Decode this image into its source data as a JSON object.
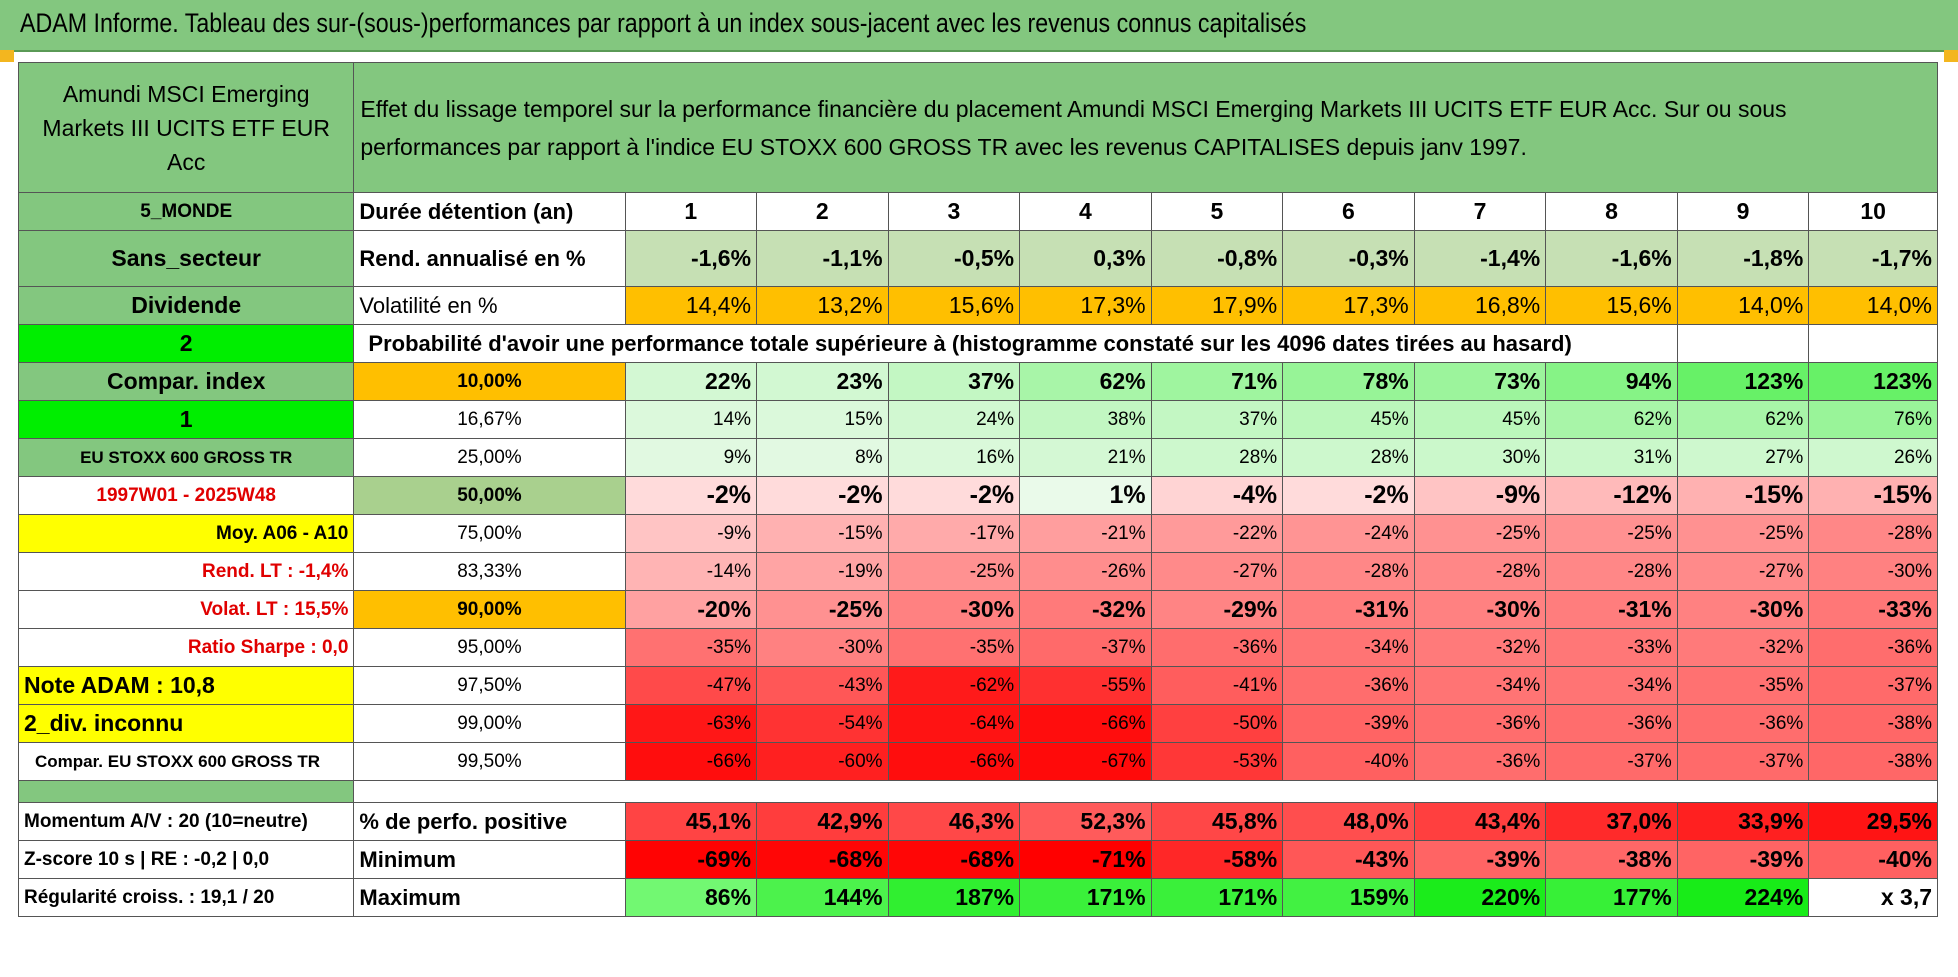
{
  "banner": {
    "title": "ADAM Informe. Tableau des sur-(sous-)performances par rapport à un index sous-jacent avec les revenus connus capitalisés"
  },
  "fund": {
    "name": "Amundi MSCI Emerging Markets III UCITS ETF EUR Acc"
  },
  "description": "Effet du lissage temporel sur la performance financière du placement Amundi MSCI Emerging Markets III UCITS ETF EUR Acc. Sur ou sous performances par rapport à l'indice EU STOXX 600 GROSS TR avec les revenus CAPITALISES depuis janv 1997.",
  "left": {
    "zone": "5_MONDE",
    "sector": "Sans_secteur",
    "dividend": "Dividende",
    "val2": "2",
    "compar_index": "Compar. index",
    "val1": "1",
    "index_name": "EU STOXX 600 GROSS TR",
    "period": "1997W01 - 2025W48",
    "moy": "Moy. A06 - A10",
    "rend_lt": "Rend. LT :   -1,4%",
    "volat_lt": "Volat. LT :   15,5%",
    "sharpe": "Ratio Sharpe :    0,0",
    "note": "Note ADAM : 10,8",
    "div_inconnu": "2_div. inconnu",
    "compar_full": "Compar. EU STOXX 600 GROSS TR",
    "momentum": "Momentum A/V : 20 (10=neutre)",
    "zscore": "Z-score 10 s | RE : -0,2 | 0,0",
    "regularite": "Régularité croiss. : 19,1 / 20"
  },
  "labels": {
    "duree": "Durée détention (an)",
    "rend": "Rend. annualisé en %",
    "vol": "Volatilité en %",
    "proba": "Probabilité d'avoir une performance totale supérieure à (histogramme constaté sur les 4096 dates tirées au hasard)",
    "pos": "% de perfo. positive",
    "min": "Minimum",
    "max": "Maximum"
  },
  "years": [
    "1",
    "2",
    "3",
    "4",
    "5",
    "6",
    "7",
    "8",
    "9",
    "10"
  ],
  "rend": [
    "-1,6%",
    "-1,1%",
    "-0,5%",
    "0,3%",
    "-0,8%",
    "-0,3%",
    "-1,4%",
    "-1,6%",
    "-1,8%",
    "-1,7%"
  ],
  "vol": [
    "14,4%",
    "13,2%",
    "15,6%",
    "17,3%",
    "17,9%",
    "17,3%",
    "16,8%",
    "15,6%",
    "14,0%",
    "14,0%"
  ],
  "pct_rows": [
    {
      "p": "10,00%",
      "v": [
        "22%",
        "23%",
        "37%",
        "62%",
        "71%",
        "78%",
        "73%",
        "94%",
        "123%",
        "123%"
      ]
    },
    {
      "p": "16,67%",
      "v": [
        "14%",
        "15%",
        "24%",
        "38%",
        "37%",
        "45%",
        "45%",
        "62%",
        "62%",
        "76%"
      ]
    },
    {
      "p": "25,00%",
      "v": [
        "9%",
        "8%",
        "16%",
        "21%",
        "28%",
        "28%",
        "30%",
        "31%",
        "27%",
        "26%"
      ]
    },
    {
      "p": "50,00%",
      "v": [
        "-2%",
        "-2%",
        "-2%",
        "1%",
        "-4%",
        "-2%",
        "-9%",
        "-12%",
        "-15%",
        "-15%"
      ]
    },
    {
      "p": "75,00%",
      "v": [
        "-9%",
        "-15%",
        "-17%",
        "-21%",
        "-22%",
        "-24%",
        "-25%",
        "-25%",
        "-25%",
        "-28%"
      ]
    },
    {
      "p": "83,33%",
      "v": [
        "-14%",
        "-19%",
        "-25%",
        "-26%",
        "-27%",
        "-28%",
        "-28%",
        "-28%",
        "-27%",
        "-30%"
      ]
    },
    {
      "p": "90,00%",
      "v": [
        "-20%",
        "-25%",
        "-30%",
        "-32%",
        "-29%",
        "-31%",
        "-30%",
        "-31%",
        "-30%",
        "-33%"
      ]
    },
    {
      "p": "95,00%",
      "v": [
        "-35%",
        "-30%",
        "-35%",
        "-37%",
        "-36%",
        "-34%",
        "-32%",
        "-33%",
        "-32%",
        "-36%"
      ]
    },
    {
      "p": "97,50%",
      "v": [
        "-47%",
        "-43%",
        "-62%",
        "-55%",
        "-41%",
        "-36%",
        "-34%",
        "-34%",
        "-35%",
        "-37%"
      ]
    },
    {
      "p": "99,00%",
      "v": [
        "-63%",
        "-54%",
        "-64%",
        "-66%",
        "-50%",
        "-39%",
        "-36%",
        "-36%",
        "-36%",
        "-38%"
      ]
    },
    {
      "p": "99,50%",
      "v": [
        "-66%",
        "-60%",
        "-66%",
        "-67%",
        "-53%",
        "-40%",
        "-36%",
        "-37%",
        "-37%",
        "-38%"
      ]
    }
  ],
  "pos": [
    "45,1%",
    "42,9%",
    "46,3%",
    "52,3%",
    "45,8%",
    "48,0%",
    "43,4%",
    "37,0%",
    "33,9%",
    "29,5%"
  ],
  "min": [
    "-69%",
    "-68%",
    "-68%",
    "-71%",
    "-58%",
    "-43%",
    "-39%",
    "-38%",
    "-39%",
    "-40%"
  ],
  "max": [
    "86%",
    "144%",
    "187%",
    "171%",
    "171%",
    "159%",
    "220%",
    "177%",
    "224%",
    "x 3,7"
  ],
  "colors": {
    "header_green": "#83c77f",
    "bright_green": "#00ee00",
    "yellow": "#ffff00",
    "orange": "#ffbf00",
    "red_text": "#e00000"
  }
}
